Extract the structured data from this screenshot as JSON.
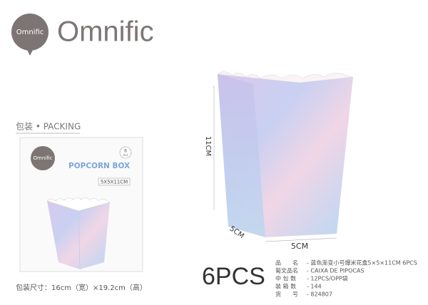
{
  "brand": {
    "badge": "Omnific",
    "name": "Omnific"
  },
  "packing": {
    "heading": "包装 • PACKING",
    "badge": "Omnific",
    "product": "POPCORN BOX",
    "count_number": "6",
    "count_unit": "PCS",
    "size": "5X5X11CM",
    "caption": "包装尺寸：16cm（宽）×19.2cm（高）"
  },
  "dimensions": {
    "height": "11CM",
    "depth": "5CM",
    "width": "5CM"
  },
  "quantity": "6PCS",
  "specs": [
    [
      "品　　名",
      "- 蓝色渐变小号爆米花盒5×5×11CM 6PCS"
    ],
    [
      "葡文品名",
      "- CAIXA DE PIPOCAS"
    ],
    [
      "中 包 数",
      "- 12PCS/OPP袋"
    ],
    [
      "装 箱 数",
      "- 144"
    ],
    [
      "货　　号",
      "- 824807"
    ]
  ]
}
